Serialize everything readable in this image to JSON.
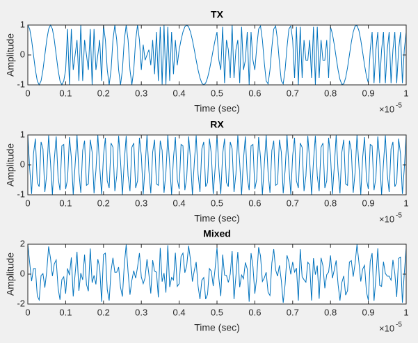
{
  "chart_data": [
    {
      "type": "line",
      "title": "TX",
      "x_label": "Time (sec)",
      "y_label": "Amplitude",
      "x_multiplier": {
        "base": "×10",
        "exponent": "-5"
      },
      "xlim": [
        0,
        1
      ],
      "ylim": [
        -1,
        1
      ],
      "xticks": [
        0,
        0.1,
        0.2,
        0.3,
        0.4,
        0.5,
        0.6,
        0.7,
        0.8,
        0.9,
        1
      ],
      "yticks": [
        -1,
        0,
        1
      ],
      "color": "#0072bd",
      "x": [
        0,
        0.005,
        0.01,
        0.015,
        0.02,
        0.025,
        0.03,
        0.035,
        0.04,
        0.045,
        0.05,
        0.055,
        0.06,
        0.065,
        0.07,
        0.075,
        0.08,
        0.085,
        0.09,
        0.095,
        0.1,
        0.105,
        0.11,
        0.115,
        0.12,
        0.125,
        0.13,
        0.135,
        0.14,
        0.145,
        0.15,
        0.155,
        0.16,
        0.165,
        0.17,
        0.175,
        0.18,
        0.185,
        0.19,
        0.195,
        0.2,
        0.205,
        0.21,
        0.215,
        0.22,
        0.225,
        0.23,
        0.235,
        0.24,
        0.245,
        0.25,
        0.255,
        0.26,
        0.265,
        0.27,
        0.275,
        0.28,
        0.285,
        0.29,
        0.295,
        0.3,
        0.305,
        0.31,
        0.315,
        0.32,
        0.325,
        0.33,
        0.335,
        0.34,
        0.345,
        0.35,
        0.355,
        0.36,
        0.365,
        0.37,
        0.375,
        0.38,
        0.385,
        0.39,
        0.395,
        0.4,
        0.405,
        0.41,
        0.415,
        0.42,
        0.425,
        0.43,
        0.435,
        0.44,
        0.445,
        0.45,
        0.455,
        0.46,
        0.465,
        0.47,
        0.475,
        0.48,
        0.485,
        0.49,
        0.495,
        0.5,
        0.505,
        0.51,
        0.515,
        0.52,
        0.525,
        0.53,
        0.535,
        0.54,
        0.545,
        0.55,
        0.555,
        0.56,
        0.565,
        0.57,
        0.575,
        0.58,
        0.585,
        0.59,
        0.595,
        0.6,
        0.605,
        0.61,
        0.615,
        0.62,
        0.625,
        0.63,
        0.635,
        0.64,
        0.645,
        0.65,
        0.655,
        0.66,
        0.665,
        0.67,
        0.675,
        0.68,
        0.685,
        0.69,
        0.695,
        0.7,
        0.705,
        0.71,
        0.715,
        0.72,
        0.725,
        0.73,
        0.735,
        0.74,
        0.745,
        0.75,
        0.755,
        0.76,
        0.765,
        0.77,
        0.775,
        0.78,
        0.785,
        0.79,
        0.795,
        0.8,
        0.805,
        0.81,
        0.815,
        0.82,
        0.825,
        0.83,
        0.835,
        0.84,
        0.845,
        0.85,
        0.855,
        0.86,
        0.865,
        0.87,
        0.875,
        0.88,
        0.885,
        0.89,
        0.895,
        0.9,
        0.905,
        0.91,
        0.915,
        0.92,
        0.925,
        0.93,
        0.935,
        0.94,
        0.945,
        0.95,
        0.955,
        0.96,
        0.965,
        0.97,
        0.975,
        0.98,
        0.985,
        0.99,
        0.995,
        1
      ],
      "values": [
        1,
        0.866,
        0.5,
        0,
        -0.5,
        -0.866,
        -1,
        -0.866,
        -0.5,
        0,
        0.5,
        0.866,
        1,
        0.866,
        0.5,
        0,
        -0.5,
        -0.866,
        -1,
        -0.866,
        -0.5,
        0.866,
        -1,
        0.866,
        -0.5,
        0,
        0.5,
        -0.866,
        1,
        -0.866,
        0.5,
        0,
        -0.5,
        0.866,
        -1,
        0.866,
        -0.5,
        0,
        0.5,
        -0.866,
        1,
        0.5,
        -0.5,
        -1,
        -0.5,
        0.5,
        1,
        0.5,
        -0.5,
        -1,
        -0.5,
        0.5,
        1,
        0.5,
        -0.5,
        -1,
        -0.5,
        0.5,
        1,
        0.5,
        -0.5,
        0.342,
        -0.174,
        0,
        0.174,
        -0.342,
        0.5,
        -0.643,
        0.766,
        -0.866,
        0.94,
        -0.985,
        1,
        -0.985,
        0.94,
        -0.866,
        0.766,
        -0.643,
        0.5,
        -0.342,
        0.174,
        0.5,
        0.766,
        0.94,
        1,
        0.94,
        0.766,
        0.5,
        0.174,
        -0.174,
        -0.5,
        -0.766,
        -0.94,
        -1,
        -0.94,
        -0.766,
        -0.5,
        -0.174,
        0.174,
        0.5,
        0.766,
        -0.174,
        -0.5,
        0.94,
        -0.94,
        0.5,
        0.174,
        -0.766,
        1,
        -0.766,
        0.174,
        0.5,
        -0.94,
        0.94,
        -0.5,
        -0.174,
        0.766,
        -1,
        0.766,
        -0.174,
        -0.5,
        0.259,
        0.866,
        0.966,
        0.5,
        -0.259,
        -0.866,
        -0.966,
        -0.5,
        0.259,
        0.866,
        0.966,
        0.5,
        -0.259,
        -0.866,
        -0.966,
        -0.5,
        0.259,
        0.866,
        0.966,
        0.5,
        -0.766,
        0.94,
        -1,
        0.94,
        -0.766,
        0.5,
        -0.174,
        -0.174,
        0.5,
        -0.766,
        0.94,
        -1,
        0.94,
        -0.766,
        0.5,
        -0.174,
        -0.174,
        0.5,
        -0.766,
        0.94,
        0.707,
        0.342,
        -0.087,
        -0.5,
        -0.819,
        -0.985,
        -0.966,
        -0.766,
        -0.423,
        0,
        0.423,
        0.766,
        0.966,
        0.985,
        0.819,
        0.5,
        0.087,
        -0.342,
        -0.707,
        -0.94,
        0.174,
        0.766,
        -0.94,
        0.174,
        0.766,
        -0.94,
        0.174,
        0.766,
        -0.94,
        0.174,
        0.766,
        -0.94,
        0.174,
        0.766,
        -0.94,
        0.174,
        0.766,
        -0.94,
        0.174,
        0.766
      ]
    },
    {
      "type": "line",
      "title": "RX",
      "x_label": "Time (sec)",
      "y_label": "Amplitude",
      "x_multiplier": {
        "base": "×10",
        "exponent": "-5"
      },
      "xlim": [
        0,
        1
      ],
      "ylim": [
        -1,
        1
      ],
      "xticks": [
        0,
        0.1,
        0.2,
        0.3,
        0.4,
        0.5,
        0.6,
        0.7,
        0.8,
        0.9,
        1
      ],
      "yticks": [
        -1,
        0,
        1
      ],
      "color": "#0072bd",
      "x": [
        0,
        0.005,
        0.01,
        0.015,
        0.02,
        0.025,
        0.03,
        0.035,
        0.04,
        0.045,
        0.05,
        0.055,
        0.06,
        0.065,
        0.07,
        0.075,
        0.08,
        0.085,
        0.09,
        0.095,
        0.1,
        0.105,
        0.11,
        0.115,
        0.12,
        0.125,
        0.13,
        0.135,
        0.14,
        0.145,
        0.15,
        0.155,
        0.16,
        0.165,
        0.17,
        0.175,
        0.18,
        0.185,
        0.19,
        0.195,
        0.2,
        0.205,
        0.21,
        0.215,
        0.22,
        0.225,
        0.23,
        0.235,
        0.24,
        0.245,
        0.25,
        0.255,
        0.26,
        0.265,
        0.27,
        0.275,
        0.28,
        0.285,
        0.29,
        0.295,
        0.3,
        0.305,
        0.31,
        0.315,
        0.32,
        0.325,
        0.33,
        0.335,
        0.34,
        0.345,
        0.35,
        0.355,
        0.36,
        0.365,
        0.37,
        0.375,
        0.38,
        0.385,
        0.39,
        0.395,
        0.4,
        0.405,
        0.41,
        0.415,
        0.42,
        0.425,
        0.43,
        0.435,
        0.44,
        0.445,
        0.45,
        0.455,
        0.46,
        0.465,
        0.47,
        0.475,
        0.48,
        0.485,
        0.49,
        0.495,
        0.5,
        0.505,
        0.51,
        0.515,
        0.52,
        0.525,
        0.53,
        0.535,
        0.54,
        0.545,
        0.55,
        0.555,
        0.56,
        0.565,
        0.57,
        0.575,
        0.58,
        0.585,
        0.59,
        0.595,
        0.6,
        0.605,
        0.61,
        0.615,
        0.62,
        0.625,
        0.63,
        0.635,
        0.64,
        0.645,
        0.65,
        0.655,
        0.66,
        0.665,
        0.67,
        0.675,
        0.68,
        0.685,
        0.69,
        0.695,
        0.7,
        0.705,
        0.71,
        0.715,
        0.72,
        0.725,
        0.73,
        0.735,
        0.74,
        0.745,
        0.75,
        0.755,
        0.76,
        0.765,
        0.77,
        0.775,
        0.78,
        0.785,
        0.79,
        0.795,
        0.8,
        0.805,
        0.81,
        0.815,
        0.82,
        0.825,
        0.83,
        0.835,
        0.84,
        0.845,
        0.85,
        0.855,
        0.86,
        0.865,
        0.87,
        0.875,
        0.88,
        0.885,
        0.89,
        0.895,
        0.9,
        0.905,
        0.91,
        0.915,
        0.92,
        0.925,
        0.93,
        0.935,
        0.94,
        0.945,
        0.95,
        0.955,
        0.96,
        0.965,
        0.97,
        0.975,
        0.98,
        0.985,
        0.99,
        0.995,
        1
      ],
      "values": [
        1,
        -0.125,
        -0.969,
        0.368,
        0.876,
        -0.588,
        -0.729,
        0.771,
        0.536,
        -0.905,
        -0.309,
        0.982,
        0.063,
        -0.998,
        0.187,
        0.951,
        -0.426,
        -0.844,
        0.637,
        0.685,
        -0.809,
        -0.482,
        0.93,
        0.249,
        -0.992,
        0,
        0.992,
        -0.249,
        -0.93,
        0.482,
        0.809,
        -0.685,
        -0.637,
        0.844,
        0.426,
        -0.951,
        -0.187,
        0.998,
        -0.063,
        -0.982,
        0.309,
        0.905,
        -0.536,
        -0.771,
        0.729,
        0.588,
        -0.876,
        -0.368,
        0.969,
        0.125,
        -1,
        0.125,
        0.969,
        -0.368,
        -0.876,
        0.588,
        0.729,
        -0.771,
        -0.536,
        0.905,
        0.309,
        -0.982,
        -0.063,
        0.998,
        -0.187,
        -0.951,
        0.426,
        0.844,
        -0.637,
        -0.685,
        0.809,
        0.482,
        -0.93,
        -0.249,
        0.992,
        0,
        -0.992,
        0.249,
        0.93,
        -0.482,
        -0.809,
        0.685,
        0.637,
        -0.844,
        -0.426,
        0.951,
        0.187,
        -0.998,
        0.063,
        0.982,
        -0.309,
        -0.905,
        0.536,
        0.771,
        -0.729,
        -0.588,
        0.876,
        0.368,
        -0.969,
        -0.125,
        1,
        -0.125,
        -0.969,
        0.368,
        0.876,
        -0.588,
        -0.729,
        0.771,
        0.536,
        -0.905,
        -0.309,
        0.982,
        0.063,
        -0.998,
        0.187,
        0.951,
        -0.426,
        -0.844,
        0.637,
        0.685,
        -0.809,
        -0.482,
        0.93,
        0.249,
        -0.992,
        0,
        0.992,
        -0.249,
        -0.93,
        0.482,
        0.809,
        -0.685,
        -0.637,
        0.844,
        0.426,
        -0.951,
        -0.187,
        0.998,
        -0.063,
        -0.982,
        0.309,
        0.905,
        -0.536,
        -0.771,
        0.729,
        0.588,
        -0.876,
        -0.368,
        0.969,
        0.125,
        -1,
        0.125,
        0.969,
        -0.368,
        -0.876,
        0.588,
        0.729,
        -0.771,
        -0.536,
        0.905,
        0.309,
        -0.982,
        -0.063,
        0.998,
        -0.187,
        -0.951,
        0.426,
        0.844,
        -0.637,
        -0.685,
        0.809,
        0.482,
        -0.93,
        -0.249,
        0.992,
        0,
        -0.992,
        0.249,
        0.93,
        -0.482,
        -0.809,
        0.685,
        0.637,
        -0.844,
        -0.426,
        0.951,
        0.187,
        -0.998,
        0.063,
        0.982,
        -0.309,
        -0.905,
        0.536,
        0.771,
        -0.729,
        -0.588,
        0.876,
        0.368,
        -0.969,
        -0.125,
        1
      ]
    },
    {
      "type": "line",
      "title": "Mixed",
      "x_label": "Time (sec)",
      "y_label": "Amplitude",
      "x_multiplier": {
        "base": "×10",
        "exponent": "-5"
      },
      "xlim": [
        0,
        1
      ],
      "ylim": [
        -2,
        2
      ],
      "xticks": [
        0,
        0.1,
        0.2,
        0.3,
        0.4,
        0.5,
        0.6,
        0.7,
        0.8,
        0.9,
        1
      ],
      "yticks": [
        -2,
        0,
        2
      ],
      "color": "#0072bd",
      "x": [
        0,
        0.005,
        0.01,
        0.015,
        0.02,
        0.025,
        0.03,
        0.035,
        0.04,
        0.045,
        0.05,
        0.055,
        0.06,
        0.065,
        0.07,
        0.075,
        0.08,
        0.085,
        0.09,
        0.095,
        0.1,
        0.105,
        0.11,
        0.115,
        0.12,
        0.125,
        0.13,
        0.135,
        0.14,
        0.145,
        0.15,
        0.155,
        0.16,
        0.165,
        0.17,
        0.175,
        0.18,
        0.185,
        0.19,
        0.195,
        0.2,
        0.205,
        0.21,
        0.215,
        0.22,
        0.225,
        0.23,
        0.235,
        0.24,
        0.245,
        0.25,
        0.255,
        0.26,
        0.265,
        0.27,
        0.275,
        0.28,
        0.285,
        0.29,
        0.295,
        0.3,
        0.305,
        0.31,
        0.315,
        0.32,
        0.325,
        0.33,
        0.335,
        0.34,
        0.345,
        0.35,
        0.355,
        0.36,
        0.365,
        0.37,
        0.375,
        0.38,
        0.385,
        0.39,
        0.395,
        0.4,
        0.405,
        0.41,
        0.415,
        0.42,
        0.425,
        0.43,
        0.435,
        0.44,
        0.445,
        0.45,
        0.455,
        0.46,
        0.465,
        0.47,
        0.475,
        0.48,
        0.485,
        0.49,
        0.495,
        0.5,
        0.505,
        0.51,
        0.515,
        0.52,
        0.525,
        0.53,
        0.535,
        0.54,
        0.545,
        0.55,
        0.555,
        0.56,
        0.565,
        0.57,
        0.575,
        0.58,
        0.585,
        0.59,
        0.595,
        0.6,
        0.605,
        0.61,
        0.615,
        0.62,
        0.625,
        0.63,
        0.635,
        0.64,
        0.645,
        0.65,
        0.655,
        0.66,
        0.665,
        0.67,
        0.675,
        0.68,
        0.685,
        0.69,
        0.695,
        0.7,
        0.705,
        0.71,
        0.715,
        0.72,
        0.725,
        0.73,
        0.735,
        0.74,
        0.745,
        0.75,
        0.755,
        0.76,
        0.765,
        0.77,
        0.775,
        0.78,
        0.785,
        0.79,
        0.795,
        0.8,
        0.805,
        0.81,
        0.815,
        0.82,
        0.825,
        0.83,
        0.835,
        0.84,
        0.845,
        0.85,
        0.855,
        0.86,
        0.865,
        0.87,
        0.875,
        0.88,
        0.885,
        0.89,
        0.895,
        0.9,
        0.905,
        0.91,
        0.915,
        0.92,
        0.925,
        0.93,
        0.935,
        0.94,
        0.945,
        0.95,
        0.955,
        0.96,
        0.965,
        0.97,
        0.975,
        0.98,
        0.985,
        0.99,
        0.995,
        1
      ],
      "values": [
        2,
        0.741,
        -0.469,
        0.368,
        0.376,
        -1.454,
        -1.729,
        -0.095,
        0.036,
        -0.905,
        0.191,
        1.848,
        1.063,
        -0.132,
        0.687,
        0.951,
        -0.926,
        -1.71,
        -0.363,
        -0.181,
        -1.309,
        0.384,
        -0.07,
        1.115,
        -1.492,
        0,
        1.492,
        -1.115,
        0.07,
        -0.384,
        1.309,
        -0.685,
        -1.137,
        1.71,
        -0.574,
        -0.085,
        -0.687,
        0.998,
        0.437,
        -1.848,
        1.309,
        1.405,
        -1.036,
        -1.771,
        0.229,
        1.088,
        0.124,
        0.132,
        0.469,
        -0.875,
        -1.5,
        0.625,
        1.969,
        0.132,
        -1.376,
        -0.412,
        0.229,
        -0.271,
        0.464,
        1.405,
        -0.191,
        -0.64,
        -0.237,
        0.998,
        -0.013,
        -1.293,
        0.926,
        0.201,
        0.129,
        -1.551,
        1.749,
        -0.503,
        0.07,
        -1.234,
        1.932,
        -0.866,
        -0.226,
        -0.394,
        1.43,
        -0.824,
        -0.635,
        1.185,
        1.403,
        0.096,
        0.574,
        1.891,
        0.953,
        -0.498,
        0.237,
        0.808,
        -0.809,
        -1.671,
        -0.404,
        -0.229,
        -1.669,
        -1.354,
        0.376,
        0.194,
        -0.795,
        0.375,
        1.766,
        -0.299,
        -1.469,
        1.308,
        -0.064,
        -0.088,
        -0.555,
        0.005,
        1.536,
        -1.671,
        -0.135,
        1.482,
        -0.877,
        -0.058,
        -0.313,
        0.777,
        0.34,
        -1.844,
        1.403,
        0.511,
        -1.309,
        -0.223,
        1.796,
        1.215,
        -0.492,
        -0.259,
        0.126,
        -1.215,
        -1.43,
        0.741,
        1.675,
        0.281,
        -0.137,
        0.585,
        -0.44,
        -1.917,
        -0.687,
        1.257,
        0.803,
        -0.016,
        0.809,
        0.139,
        0.404,
        -1.771,
        1.669,
        -0.178,
        -0.376,
        -0.542,
        0.795,
        0.625,
        -1.766,
        1.065,
        -0.031,
        0.572,
        -1.642,
        1.088,
        0.555,
        -0.945,
        -0.036,
        0.139,
        1.249,
        -0.275,
        0.279,
        0.911,
        -0.687,
        -1.77,
        -0.559,
        -0.122,
        -1.403,
        -1.108,
        0.809,
        0.905,
        -0.164,
        0.717,
        1.977,
        0.819,
        -0.492,
        0.336,
        0.588,
        -1.189,
        -1.749,
        0.859,
        1.403,
        -1.784,
        -0.252,
        1.717,
        -0.753,
        -0.824,
        0.829,
        0.042,
        -0.135,
        -0.139,
        -0.404,
        0.945,
        0.037,
        -1.528,
        1.05,
        1.134,
        -1.909,
        0.049,
        1.766
      ]
    }
  ]
}
